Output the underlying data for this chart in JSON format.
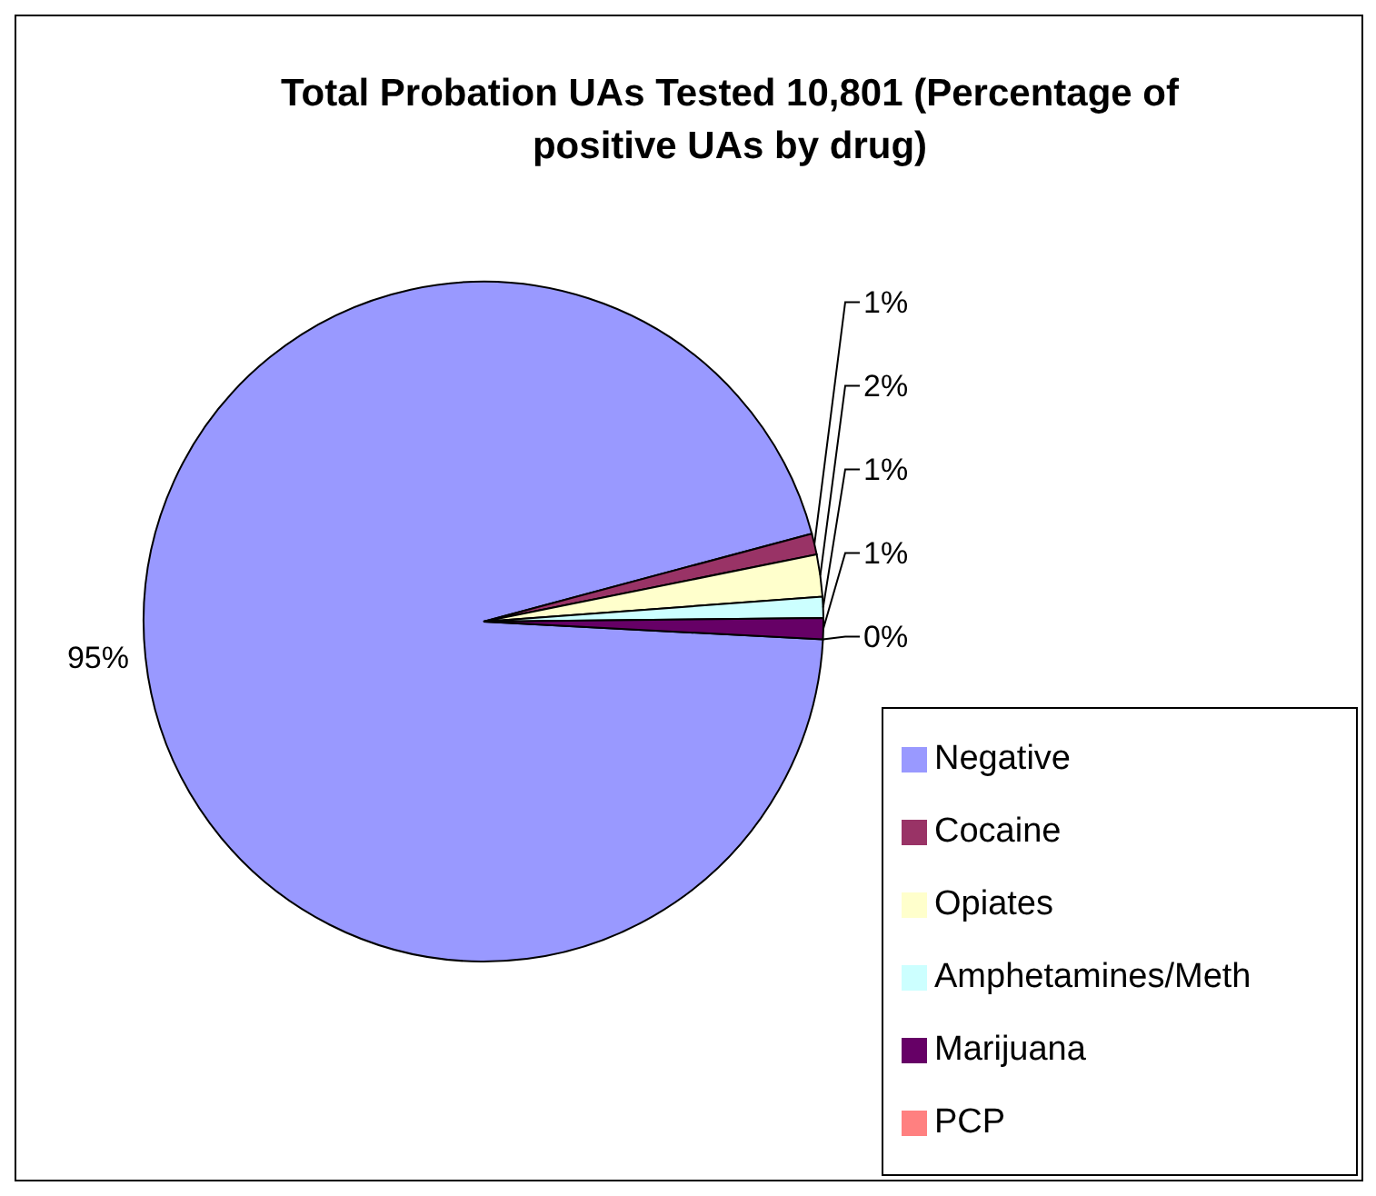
{
  "chart_data": {
    "type": "pie",
    "title": "Total Probation UAs Tested 10,801 (Percentage of positive UAs by drug)",
    "categories": [
      "Negative",
      "Cocaine",
      "Opiates",
      "Amphetamines/Meth",
      "Marijuana",
      "PCP"
    ],
    "values": [
      95,
      1,
      2,
      1,
      1,
      0
    ],
    "colors": [
      "#9999ff",
      "#993366",
      "#ffffcc",
      "#ccffff",
      "#660066",
      "#ff8080"
    ],
    "legend": "bottom right",
    "value_labels": [
      "95%",
      "1%",
      "2%",
      "1%",
      "1%",
      "0%"
    ]
  }
}
